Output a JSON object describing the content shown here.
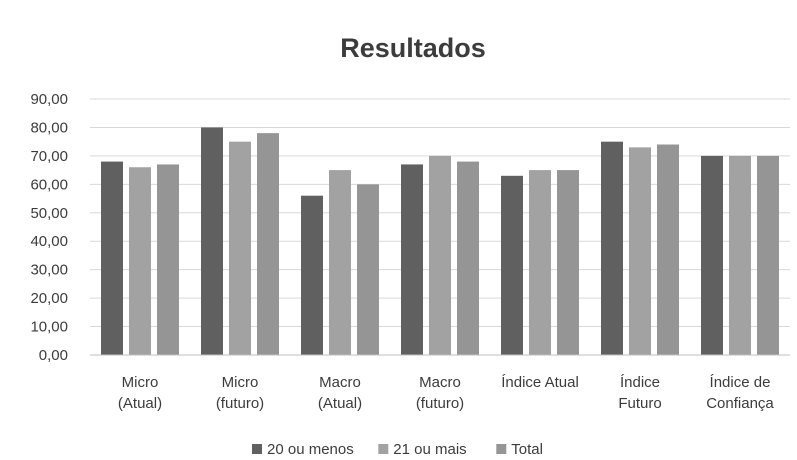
{
  "chart_data": {
    "type": "bar",
    "title": "Resultados",
    "xlabel": "",
    "ylabel": "",
    "ylim": [
      0,
      90
    ],
    "yticks": [
      "0,00",
      "10,00",
      "20,00",
      "30,00",
      "40,00",
      "50,00",
      "60,00",
      "70,00",
      "80,00",
      "90,00"
    ],
    "grid": true,
    "legend_position": "bottom",
    "categories": [
      [
        "Micro",
        "(Atual)"
      ],
      [
        "Micro",
        "(futuro)"
      ],
      [
        "Macro",
        "(Atual)"
      ],
      [
        "Macro",
        "(futuro)"
      ],
      [
        "Índice Atual"
      ],
      [
        "Índice",
        "Futuro"
      ],
      [
        "Índice de",
        "Confiança"
      ]
    ],
    "series": [
      {
        "name": "20 ou menos",
        "color": "#606060",
        "values": [
          68,
          80,
          56,
          67,
          63,
          75,
          70
        ]
      },
      {
        "name": "21 ou mais",
        "color": "#a2a2a2",
        "values": [
          66,
          75,
          65,
          70,
          65,
          73,
          70
        ]
      },
      {
        "name": "Total",
        "color": "#959595",
        "values": [
          67,
          78,
          60,
          68,
          65,
          74,
          70
        ]
      }
    ]
  }
}
